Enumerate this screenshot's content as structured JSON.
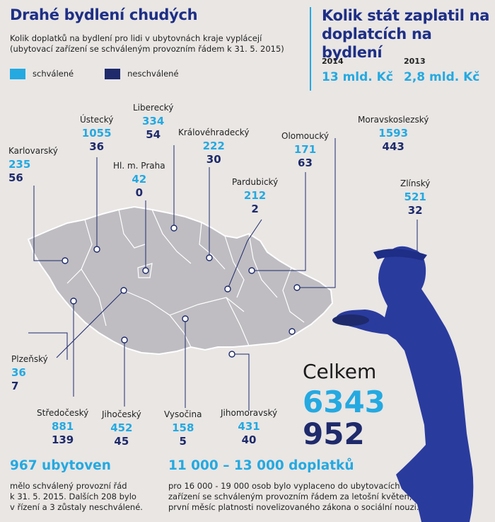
{
  "left": {
    "title": "Drahé bydlení chudých",
    "subtitle_line1": "Kolik doplatků na bydlení pro lidi v ubytovnách kraje vyplácejí",
    "subtitle_line2": "(ubytovací zařízení se schváleným provozním řádem k 31. 5. 2015)"
  },
  "legend": {
    "approved_label": "schválené",
    "rejected_label": "neschválené",
    "approved_color": "#24a9e1",
    "rejected_color": "#1e2a6b"
  },
  "right": {
    "title_line1": "Kolik stát zaplatil na",
    "title_line2": "doplatcích na bydlení",
    "years": [
      {
        "year": "2014",
        "amount": "13 mld. Kč"
      },
      {
        "year": "2013",
        "amount": "2,8 mld. Kč"
      }
    ]
  },
  "chart_data": {
    "type": "table",
    "series": [
      {
        "name": "schválené"
      },
      {
        "name": "neschválené"
      }
    ],
    "categories": [
      "Karlovarský",
      "Ústecký",
      "Liberecký",
      "Hl. m. Praha",
      "Královéhradecký",
      "Pardubický",
      "Olomoucký",
      "Moravskoslezský",
      "Zlínský",
      "Plzeňský",
      "Středočeský",
      "Jihočeský",
      "Vysočina",
      "Jihomoravský"
    ],
    "regions": [
      {
        "name": "Karlovarský",
        "approved": "235",
        "rejected": "56"
      },
      {
        "name": "Ústecký",
        "approved": "1055",
        "rejected": "36"
      },
      {
        "name": "Liberecký",
        "approved": "334",
        "rejected": "54"
      },
      {
        "name": "Hl. m. Praha",
        "approved": "42",
        "rejected": "0"
      },
      {
        "name": "Královéhradecký",
        "approved": "222",
        "rejected": "30"
      },
      {
        "name": "Pardubický",
        "approved": "212",
        "rejected": "2"
      },
      {
        "name": "Olomoucký",
        "approved": "171",
        "rejected": "63"
      },
      {
        "name": "Moravskoslezský",
        "approved": "1593",
        "rejected": "443"
      },
      {
        "name": "Zlínský",
        "approved": "521",
        "rejected": "32"
      },
      {
        "name": "Plzeňský",
        "approved": "36",
        "rejected": "7"
      },
      {
        "name": "Středočeský",
        "approved": "881",
        "rejected": "139"
      },
      {
        "name": "Jihočeský",
        "approved": "452",
        "rejected": "45"
      },
      {
        "name": "Vysočina",
        "approved": "158",
        "rejected": "5"
      },
      {
        "name": "Jihomoravský",
        "approved": "431",
        "rejected": "40"
      }
    ]
  },
  "total": {
    "label": "Celkem",
    "approved": "6343",
    "rejected": "952"
  },
  "footer_left": {
    "heading": "967 ubytoven",
    "line1": "mělo schválený provozní řád",
    "line2": "k 31. 5. 2015. Dalších 208 bylo",
    "line3": "v řízení a 3 zůstaly neschválené."
  },
  "footer_right": {
    "heading": "11 000 – 13 000 doplatků",
    "line1": "pro 16 000 - 19 000 osob bylo vyplaceno do ubytovacích",
    "line2": "zařízení se schváleným provozním řádem za letošní květen,",
    "line3": "první měsíc platnosti novelizovaného zákona o sociální nouzi."
  }
}
